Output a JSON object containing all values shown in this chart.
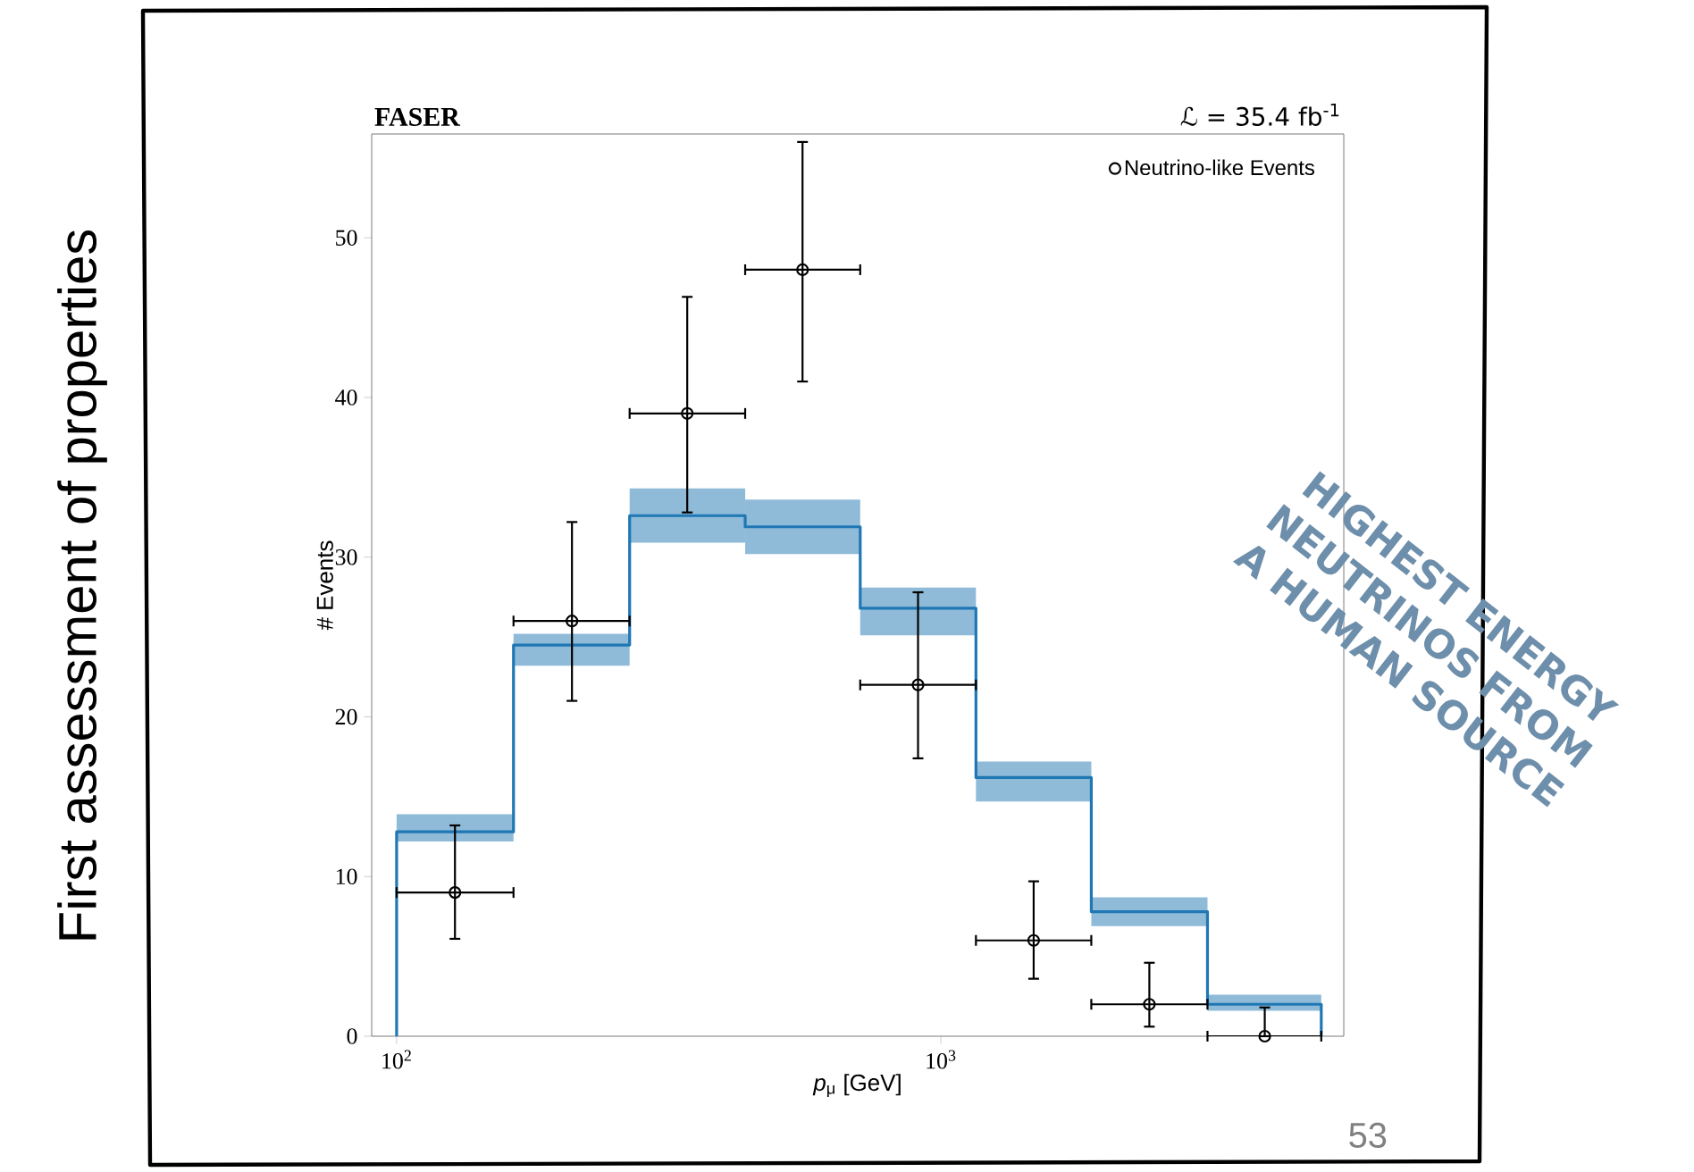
{
  "chart_data": {
    "type": "histogram",
    "title": "FASER",
    "xlabel": "*p*$_{μ}$ [GeV]",
    "ylabel": "# Events",
    "bins": [
      100,
      164,
      268,
      437,
      711,
      1160,
      1890,
      3090,
      5000
    ],
    "xlim": [
      90,
      5500
    ],
    "xticks": [
      {
        "value": 100,
        "label": "10$^{2}$"
      },
      {
        "value": 1000,
        "label": "10$^{3}$"
      }
    ],
    "ylim": [
      0,
      56.5
    ],
    "yticks": [
      0,
      10,
      20,
      30,
      40,
      50
    ],
    "log": "x",
    "legend": "top right",
    "series": [
      {
        "type": "histogram",
        "color": "#8fbbd9",
        "base": [
          12.2,
          23.2,
          30.9,
          30.2,
          25.1,
          14.7,
          6.9,
          1.6
        ],
        "values": [
          1.7,
          2.0,
          3.4,
          3.4,
          3.0,
          2.5,
          1.8,
          1.0
        ]
      },
      {
        "type": "histogram",
        "color": "#1f77b4",
        "values": [
          12.8,
          24.5,
          32.6,
          31.9,
          26.8,
          16.2,
          7.8,
          2.0
        ]
      },
      {
        "type": "scatter",
        "name": "Neutrino-like Events",
        "color": "#000000",
        "marker": "circle",
        "x": [
          128,
          210,
          342,
          557,
          908,
          1481,
          2416,
          3937
        ],
        "values": [
          9,
          26,
          39,
          48,
          22,
          6,
          2,
          0
        ],
        "errors": [
          [
            6.1,
            13.2
          ],
          [
            21,
            32.2
          ],
          [
            32.8,
            46.3
          ],
          [
            41,
            56
          ],
          [
            17.4,
            27.8
          ],
          [
            3.6,
            9.7
          ],
          [
            0.6,
            4.6
          ],
          [
            0,
            1.8
          ]
        ],
        "xerrors": [
          [
            100,
            164
          ],
          [
            164,
            268
          ],
          [
            268,
            437
          ],
          [
            437,
            711
          ],
          [
            711,
            1160
          ],
          [
            1160,
            1890
          ],
          [
            1890,
            3090
          ],
          [
            3090,
            5000
          ]
        ]
      }
    ],
    "annotations": [
      "ℒ = 35.4 fb$^{-1}$",
      "HIGHEST ENERGY NEUTRINOS FROM A HUMAN SOURCE",
      "First assessment of properties",
      "53"
    ]
  }
}
